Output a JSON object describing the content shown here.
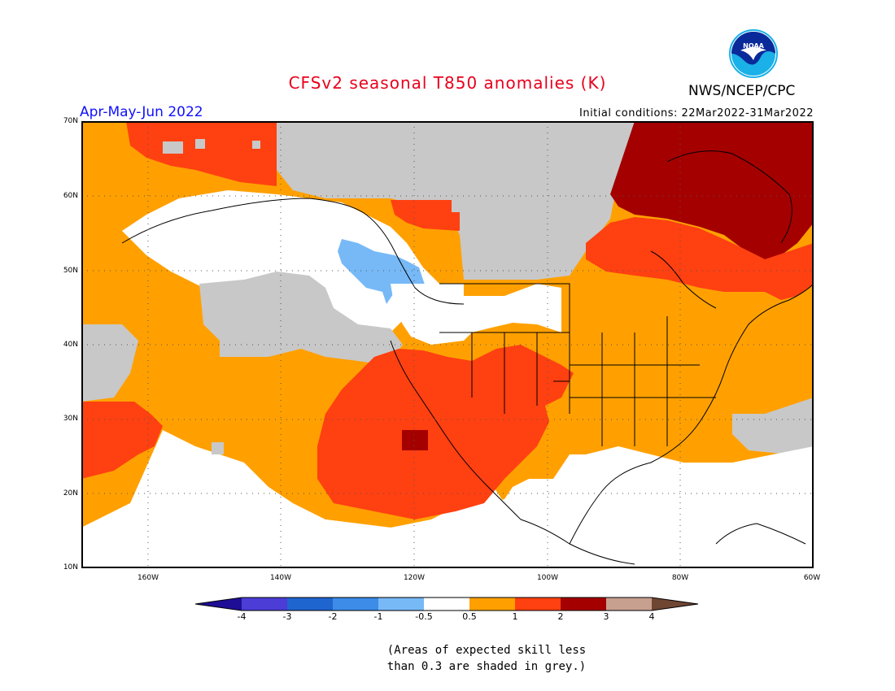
{
  "header": {
    "title": "CFSv2 seasonal T850 anomalies (K)",
    "period": "Apr-May-Jun 2022",
    "initial_conditions": "Initial conditions: 22Mar2022-31Mar2022",
    "agency": "NWS/NCEP/CPC",
    "logo_text": "NOAA"
  },
  "map": {
    "lat_labels": [
      "70N",
      "60N",
      "50N",
      "40N",
      "30N",
      "20N",
      "10N"
    ],
    "lon_labels": [
      "160W",
      "140W",
      "120W",
      "100W",
      "80W",
      "60W"
    ],
    "colors": {
      "grey": "#c8c8c8",
      "orange": "#ffa000",
      "red": "#ff4011",
      "darkred": "#a50000",
      "lightblue": "#77b9f7",
      "white": "#ffffff"
    }
  },
  "colorbar": {
    "labels": [
      "-4",
      "-3",
      "-2",
      "-1",
      "-0.5",
      "0.5",
      "1",
      "2",
      "3",
      "4"
    ],
    "colors": [
      "#1e0e96",
      "#4b3dd6",
      "#1f65d0",
      "#3c8ce8",
      "#77b9f7",
      "#ffffff",
      "#ffa000",
      "#ff4011",
      "#a50000",
      "#c8a090",
      "#6e4632"
    ]
  },
  "note": {
    "line1": "(Areas of expected skill less",
    "line2": "than 0.3 are shaded in grey.)"
  }
}
